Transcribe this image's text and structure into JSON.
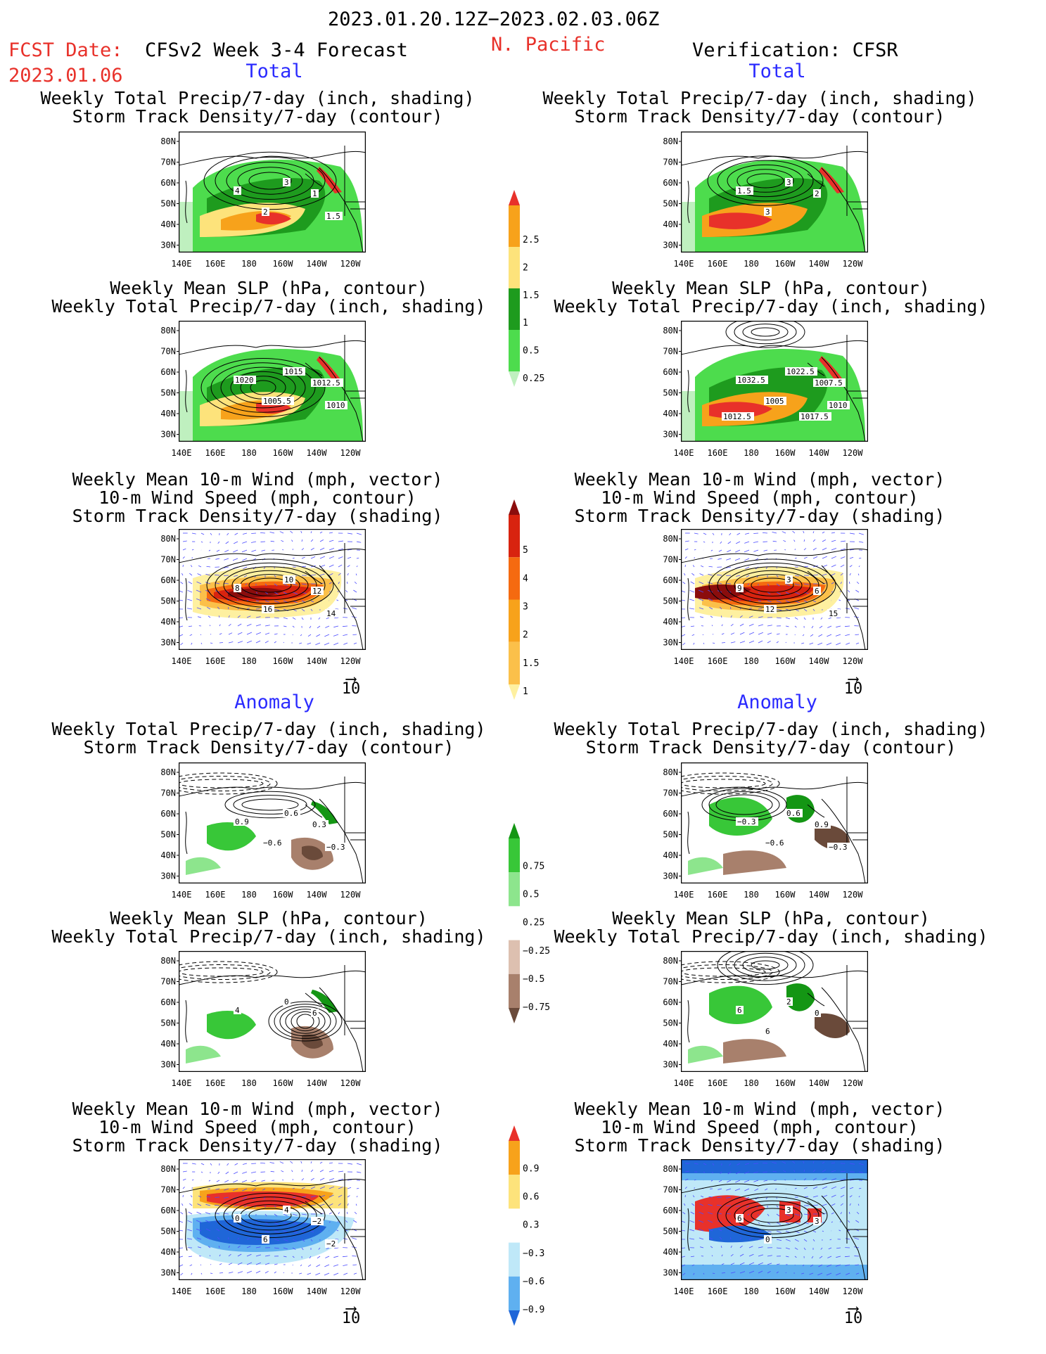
{
  "header": {
    "date_range": "2023.01.20.12Z−2023.02.03.06Z",
    "fcst_label": "FCST Date:",
    "fcst_date": "2023.01.06",
    "model_title": "CFSv2 Week 3-4 Forecast",
    "region": "N. Pacific",
    "verification": "Verification: CFSR"
  },
  "sections": {
    "total": "Total",
    "anomaly": "Anomaly"
  },
  "axes": {
    "lat_labels": [
      "80N",
      "70N",
      "60N",
      "50N",
      "40N",
      "30N"
    ],
    "lon_labels": [
      "140E",
      "160E",
      "180",
      "160W",
      "140W",
      "120W"
    ]
  },
  "titles": {
    "precip_storm": [
      "Weekly Total Precip/7-day (inch, shading)",
      "Storm Track Density/7-day (contour)"
    ],
    "slp_precip": [
      "Weekly Mean SLP (hPa, contour)",
      "Weekly Total Precip/7-day (inch, shading)"
    ],
    "wind_storm": [
      "Weekly Mean 10-m Wind (mph, vector)",
      "10-m Wind Speed (mph, contour)",
      "Storm Track Density/7-day (shading)"
    ]
  },
  "vector_ref": "10",
  "colorbars": {
    "precip_total": {
      "labels": [
        "2.5",
        "2",
        "1.5",
        "1",
        "0.5",
        "0.25"
      ],
      "colors": [
        "#e8312a",
        "#f7a21b",
        "#fde37b",
        "#1e9b1e",
        "#4ddc4d",
        "#bff0bf"
      ]
    },
    "storm_total": {
      "labels": [
        "5",
        "4",
        "3",
        "2",
        "1.5",
        "1"
      ],
      "colors": [
        "#8b0d0d",
        "#d8230f",
        "#f56a10",
        "#f7a21b",
        "#fbc04a",
        "#fef0a0"
      ]
    },
    "precip_anom": {
      "labels": [
        "0.75",
        "0.5",
        "0.25",
        "−0.25",
        "−0.5",
        "−0.75"
      ],
      "colors": [
        "#149614",
        "#38c738",
        "#8de58d",
        "#ffffff",
        "#ddc0b0",
        "#a8806c",
        "#6a4a3a"
      ]
    },
    "storm_anom": {
      "labels": [
        "0.9",
        "0.6",
        "0.3",
        "−0.3",
        "−0.6",
        "−0.9"
      ],
      "colors": [
        "#e8312a",
        "#f7a21b",
        "#fde37b",
        "#ffffff",
        "#bfe8f8",
        "#5fb0f0",
        "#1f66d8"
      ]
    }
  },
  "contour_labels": {
    "f1": [
      "4",
      "3",
      "1",
      "2",
      "1.5"
    ],
    "v1": [
      "1.5",
      "3",
      "2",
      "3"
    ],
    "f2": [
      "1020",
      "1015",
      "1012.5",
      "1005.5",
      "1010"
    ],
    "v2": [
      "1032.5",
      "1022.5",
      "1007.5",
      "1005",
      "1010",
      "1012.5",
      "1017.5"
    ],
    "f3": [
      "8",
      "10",
      "12",
      "16",
      "14"
    ],
    "v3": [
      "9",
      "3",
      "6",
      "12",
      "15"
    ],
    "f4": [
      "0.9",
      "0.6",
      "0.3",
      "−0.6",
      "−0.3"
    ],
    "v4": [
      "−0.3",
      "0.6",
      "0.9",
      "−0.6",
      "−0.3"
    ],
    "f5": [
      "4",
      "0",
      "6"
    ],
    "v5": [
      "6",
      "2",
      "0",
      "6"
    ],
    "f6": [
      "0",
      "4",
      "−2",
      "6",
      "−2"
    ],
    "v6": [
      "6",
      "3",
      "3",
      "0"
    ]
  }
}
